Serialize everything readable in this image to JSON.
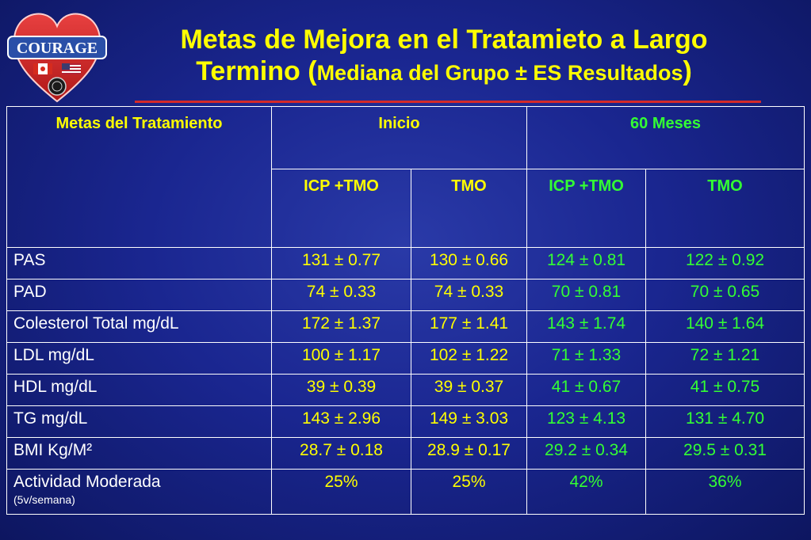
{
  "logo": {
    "text": "COURAGE",
    "icons": [
      "heart-icon",
      "canada-flag-icon",
      "usa-flag-icon",
      "veterans-seal-icon"
    ]
  },
  "title": {
    "line1": "Metas de Mejora en el Tratamieto a Largo",
    "line2_main": "Termino (",
    "line2_small": "Mediana del Grupo ± ES Resultados",
    "line2_close": ")"
  },
  "table": {
    "header_label": "Metas del Tratamiento",
    "group_inicio": "Inicio",
    "group_60": "60 Meses",
    "sub": [
      "ICP +TMO",
      "TMO",
      "ICP +TMO",
      "TMO"
    ],
    "rows": [
      {
        "label": "PAS",
        "values": [
          "131 ± 0.77",
          "130 ± 0.66",
          "124 ± 0.81",
          "122 ± 0.92"
        ]
      },
      {
        "label": "PAD",
        "values": [
          "74 ± 0.33",
          "74 ± 0.33",
          "70 ± 0.81",
          "70 ± 0.65"
        ]
      },
      {
        "label": "Colesterol Total mg/dL",
        "values": [
          "172 ± 1.37",
          "177 ± 1.41",
          "143 ± 1.74",
          "140 ± 1.64"
        ]
      },
      {
        "label": "LDL mg/dL",
        "values": [
          "100 ± 1.17",
          "102 ± 1.22",
          "71 ± 1.33",
          "72 ± 1.21"
        ]
      },
      {
        "label": "HDL mg/dL",
        "values": [
          "39 ± 0.39",
          "39 ± 0.37",
          "41 ± 0.67",
          "41 ± 0.75"
        ]
      },
      {
        "label": "TG mg/dL",
        "values": [
          "143 ± 2.96",
          "149 ± 3.03",
          "123 ± 4.13",
          "131 ± 4.70"
        ]
      },
      {
        "label": "BMI Kg/M²",
        "values": [
          "28.7 ± 0.18",
          "28.9 ± 0.17",
          "29.2 ± 0.34",
          "29.5 ± 0.31"
        ]
      },
      {
        "label": "Actividad Moderada",
        "note": "(5v/semana)",
        "values": [
          "25%",
          "25%",
          "42%",
          "36%"
        ]
      }
    ]
  },
  "colors": {
    "background": "#1a2690",
    "title": "#ffff00",
    "inicio_values": "#ffff00",
    "sixty_values": "#33ff33",
    "labels": "#ffffff",
    "underline": "#d42a2a"
  }
}
